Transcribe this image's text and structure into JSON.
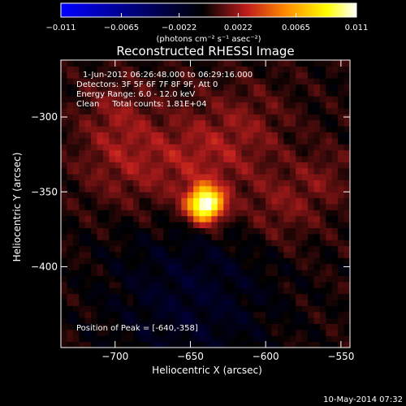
{
  "chart_data": {
    "type": "heatmap",
    "title": "Reconstructed RHESSI Image",
    "xlabel": "Heliocentric X (arcsec)",
    "ylabel": "Heliocentric Y (arcsec)",
    "xlim": [
      -736,
      -544
    ],
    "ylim": [
      -454,
      -262
    ],
    "xticks": [
      -700,
      -650,
      -600,
      -550
    ],
    "yticks": [
      -300,
      -350,
      -400
    ],
    "xtick_labels": [
      "−700",
      "−650",
      "−600",
      "−550"
    ],
    "ytick_labels": [
      "−300",
      "−350",
      "−400"
    ],
    "colorbar": {
      "range": [
        -0.011,
        0.011
      ],
      "tick_values": [
        -0.011,
        -0.0065,
        -0.0022,
        0.0022,
        0.0065,
        0.011
      ],
      "tick_labels": [
        "−0.011",
        "−0.0065",
        "−0.0022",
        "0.0022",
        "0.0065",
        "0.011"
      ],
      "units_label": "(photons cm⁻² s⁻¹ asec⁻²)",
      "colormap": [
        "#0000ff",
        "#000000",
        "#c01c1c",
        "#ff8a00",
        "#ffff00",
        "#ffffff"
      ]
    },
    "annotations": [
      "1-Jun-2012 06:26:48.000 to 06:29:16.000",
      "Detectors: 3F 5F 6F 7F 8F 9F, Att 0",
      "Energy Range: 6.0 - 12.0 keV",
      "Clean     Total counts: 1.81E+04"
    ],
    "peak_label": "Position of Peak = [-640,-358]",
    "peak": {
      "x": -640,
      "y": -358,
      "value": 0.011
    },
    "sources": [
      {
        "x": -640,
        "y": -358,
        "sigma": 8,
        "amplitude": 0.0115
      },
      {
        "x": -645,
        "y": -330,
        "sigma": 25,
        "amplitude": 0.0022
      },
      {
        "x": -695,
        "y": -328,
        "sigma": 22,
        "amplitude": 0.0018
      },
      {
        "x": -590,
        "y": -360,
        "sigma": 18,
        "amplitude": 0.0016
      },
      {
        "x": -700,
        "y": -295,
        "sigma": 15,
        "amplitude": 0.0012
      },
      {
        "x": -610,
        "y": -305,
        "sigma": 20,
        "amplitude": 0.0012
      },
      {
        "x": -560,
        "y": -340,
        "sigma": 14,
        "amplitude": 0.0012
      }
    ],
    "negative_region": {
      "x": -650,
      "y": -420,
      "sigma": 40,
      "amplitude": -0.0018
    }
  },
  "timestamp": "10-May-2014 07:32"
}
